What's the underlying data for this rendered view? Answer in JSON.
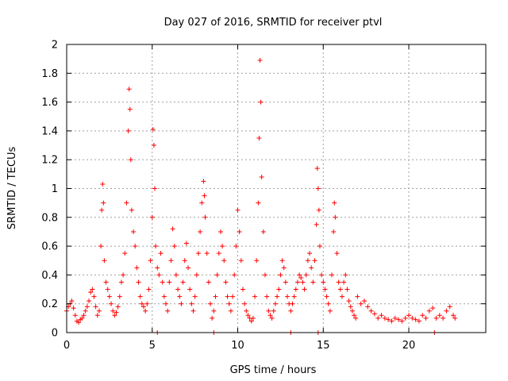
{
  "chart_data": {
    "type": "scatter",
    "title": "Day 027 of 2016, SRMTID for receiver ptvl",
    "xlabel": "GPS time / hours",
    "ylabel": "SRMTID / TECUs",
    "xlim": [
      0,
      24.5
    ],
    "ylim": [
      0,
      2
    ],
    "xticks": [
      0,
      5,
      10,
      15,
      20
    ],
    "xtick_labels": [
      "0",
      "5",
      "10",
      "15",
      "20"
    ],
    "yticks": [
      0,
      0.2,
      0.4,
      0.6,
      0.8,
      1,
      1.2,
      1.4,
      1.6,
      1.8,
      2
    ],
    "ytick_labels": [
      "0",
      "0.2",
      "0.4",
      "0.6",
      "0.8",
      "1",
      "1.2",
      "1.4",
      "1.6",
      "1.8",
      "2"
    ],
    "grid": true,
    "marker": "+",
    "color": "#ff0000",
    "series": [
      {
        "name": "SRMTID",
        "x": [
          0.0,
          0.1,
          0.2,
          0.3,
          0.4,
          0.5,
          0.6,
          0.7,
          0.8,
          0.9,
          1.0,
          1.1,
          1.2,
          1.3,
          1.4,
          1.5,
          1.6,
          1.7,
          1.8,
          1.9,
          2.0,
          2.05,
          2.1,
          2.15,
          2.2,
          2.3,
          2.4,
          2.5,
          2.6,
          2.7,
          2.8,
          2.9,
          3.0,
          3.1,
          3.2,
          3.3,
          3.4,
          3.5,
          3.6,
          3.65,
          3.7,
          3.75,
          3.8,
          3.9,
          4.0,
          4.1,
          4.2,
          4.3,
          4.4,
          4.5,
          4.6,
          4.7,
          4.8,
          4.9,
          5.0,
          5.05,
          5.1,
          5.15,
          5.2,
          5.3,
          5.4,
          5.5,
          5.6,
          5.7,
          5.8,
          5.9,
          6.0,
          6.1,
          6.2,
          6.3,
          6.4,
          6.5,
          6.6,
          6.7,
          6.8,
          6.9,
          7.0,
          7.1,
          7.2,
          7.3,
          7.4,
          7.5,
          7.6,
          7.7,
          7.8,
          7.9,
          8.0,
          8.05,
          8.1,
          8.2,
          8.3,
          8.4,
          8.5,
          8.6,
          8.7,
          8.8,
          8.9,
          9.0,
          9.1,
          9.2,
          9.3,
          9.4,
          9.5,
          9.6,
          9.7,
          9.8,
          9.9,
          10.0,
          10.1,
          10.2,
          10.3,
          10.4,
          10.5,
          10.6,
          10.7,
          10.8,
          10.9,
          11.0,
          11.1,
          11.2,
          11.25,
          11.3,
          11.35,
          11.4,
          11.5,
          11.6,
          11.7,
          11.8,
          11.9,
          12.0,
          12.1,
          12.2,
          12.3,
          12.4,
          12.5,
          12.6,
          12.7,
          12.8,
          12.9,
          13.0,
          13.1,
          13.2,
          13.3,
          13.4,
          13.5,
          13.6,
          13.7,
          13.8,
          13.9,
          14.0,
          14.1,
          14.2,
          14.3,
          14.4,
          14.5,
          14.6,
          14.65,
          14.7,
          14.75,
          14.8,
          14.9,
          15.0,
          15.1,
          15.2,
          15.3,
          15.4,
          15.5,
          15.6,
          15.65,
          15.7,
          15.8,
          15.9,
          16.0,
          16.1,
          16.2,
          16.3,
          16.4,
          16.5,
          16.6,
          16.7,
          16.8,
          16.9,
          17.0,
          17.2,
          17.4,
          17.6,
          17.8,
          18.0,
          18.2,
          18.4,
          18.6,
          18.8,
          19.0,
          19.2,
          19.4,
          19.6,
          19.8,
          20.0,
          20.2,
          20.4,
          20.6,
          20.8,
          21.0,
          21.2,
          21.4,
          21.6,
          21.8,
          22.0,
          22.2,
          22.4,
          22.6,
          22.7
        ],
        "y": [
          0.15,
          0.18,
          0.2,
          0.22,
          0.17,
          0.12,
          0.08,
          0.07,
          0.09,
          0.1,
          0.12,
          0.15,
          0.18,
          0.22,
          0.28,
          0.3,
          0.25,
          0.18,
          0.12,
          0.15,
          0.6,
          0.85,
          1.03,
          0.9,
          0.5,
          0.35,
          0.3,
          0.25,
          0.2,
          0.15,
          0.12,
          0.14,
          0.18,
          0.25,
          0.35,
          0.4,
          0.55,
          0.9,
          1.4,
          1.69,
          1.55,
          1.2,
          0.85,
          0.7,
          0.6,
          0.45,
          0.35,
          0.25,
          0.2,
          0.18,
          0.15,
          0.2,
          0.3,
          0.5,
          0.8,
          1.41,
          1.3,
          1.0,
          0.6,
          0.45,
          0.4,
          0.55,
          0.35,
          0.25,
          0.2,
          0.15,
          0.35,
          0.5,
          0.72,
          0.6,
          0.4,
          0.3,
          0.25,
          0.2,
          0.35,
          0.5,
          0.62,
          0.45,
          0.3,
          0.2,
          0.15,
          0.25,
          0.4,
          0.55,
          0.7,
          0.9,
          1.05,
          0.95,
          0.8,
          0.55,
          0.35,
          0.2,
          0.1,
          0.15,
          0.25,
          0.4,
          0.55,
          0.7,
          0.6,
          0.5,
          0.35,
          0.25,
          0.2,
          0.15,
          0.25,
          0.4,
          0.6,
          0.85,
          0.7,
          0.5,
          0.3,
          0.2,
          0.15,
          0.12,
          0.1,
          0.08,
          0.1,
          0.25,
          0.5,
          0.9,
          1.35,
          1.89,
          1.6,
          1.08,
          0.7,
          0.4,
          0.25,
          0.15,
          0.12,
          0.1,
          0.15,
          0.2,
          0.25,
          0.3,
          0.4,
          0.5,
          0.45,
          0.35,
          0.25,
          0.2,
          0.15,
          0.2,
          0.25,
          0.3,
          0.35,
          0.4,
          0.38,
          0.35,
          0.3,
          0.4,
          0.5,
          0.55,
          0.45,
          0.35,
          0.5,
          0.75,
          1.14,
          1.0,
          0.85,
          0.6,
          0.4,
          0.35,
          0.3,
          0.25,
          0.2,
          0.15,
          0.4,
          0.7,
          0.9,
          0.8,
          0.55,
          0.35,
          0.3,
          0.25,
          0.35,
          0.4,
          0.3,
          0.22,
          0.18,
          0.15,
          0.12,
          0.1,
          0.25,
          0.2,
          0.22,
          0.18,
          0.15,
          0.13,
          0.1,
          0.12,
          0.1,
          0.09,
          0.08,
          0.1,
          0.09,
          0.08,
          0.1,
          0.12,
          0.1,
          0.09,
          0.08,
          0.12,
          0.1,
          0.15,
          0.17,
          0.1,
          0.12,
          0.1,
          0.15,
          0.18,
          0.12,
          0.1
        ],
        "zero_points_x": [
          5.3,
          8.6,
          13.1,
          14.7,
          21.5
        ]
      }
    ]
  }
}
